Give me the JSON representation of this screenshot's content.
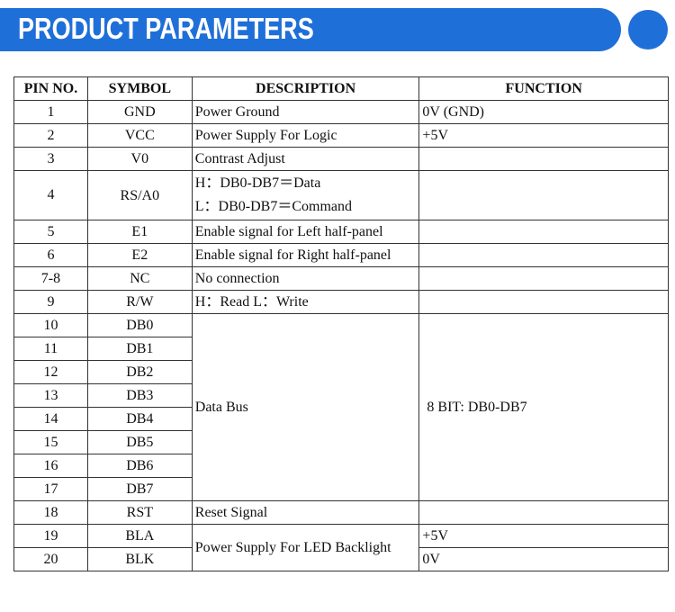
{
  "header": {
    "title": "PRODUCT PARAMETERS"
  },
  "table": {
    "columns": [
      "PIN NO.",
      "SYMBOL",
      "DESCRIPTION",
      "FUNCTION"
    ],
    "rows": [
      {
        "pin": "1",
        "symbol": "GND",
        "description": "Power Ground",
        "function": "0V (GND)"
      },
      {
        "pin": "2",
        "symbol": "VCC",
        "description": "Power Supply For Logic",
        "function": "+5V"
      },
      {
        "pin": "3",
        "symbol": "V0",
        "description": "Contrast Adjust"
      },
      {
        "pin": "4",
        "symbol": "RS/A0",
        "description": [
          "H：DB0-DB7＝Data",
          "L：DB0-DB7＝Command"
        ]
      },
      {
        "pin": "5",
        "symbol": "E1",
        "description": "Enable signal for Left half-panel"
      },
      {
        "pin": "6",
        "symbol": "E2",
        "description": "Enable signal for Right half-panel"
      },
      {
        "pin": "7-8",
        "symbol": "NC",
        "description": "No connection"
      },
      {
        "pin": "9",
        "symbol": "R/W",
        "description": "H：Read L：Write"
      },
      {
        "pin": "10",
        "symbol": "DB0",
        "description": "Data Bus",
        "function": "8 BIT: DB0-DB7"
      },
      {
        "pin": "11",
        "symbol": "DB1"
      },
      {
        "pin": "12",
        "symbol": "DB2"
      },
      {
        "pin": "13",
        "symbol": "DB3"
      },
      {
        "pin": "14",
        "symbol": "DB4"
      },
      {
        "pin": "15",
        "symbol": "DB5"
      },
      {
        "pin": "16",
        "symbol": "DB6"
      },
      {
        "pin": "17",
        "symbol": "DB7"
      },
      {
        "pin": "18",
        "symbol": "RST",
        "description": "Reset Signal"
      },
      {
        "pin": "19",
        "symbol": "BLA",
        "description": "Power Supply For LED Backlight",
        "function": "+5V"
      },
      {
        "pin": "20",
        "symbol": "BLK",
        "function": "0V"
      }
    ]
  }
}
